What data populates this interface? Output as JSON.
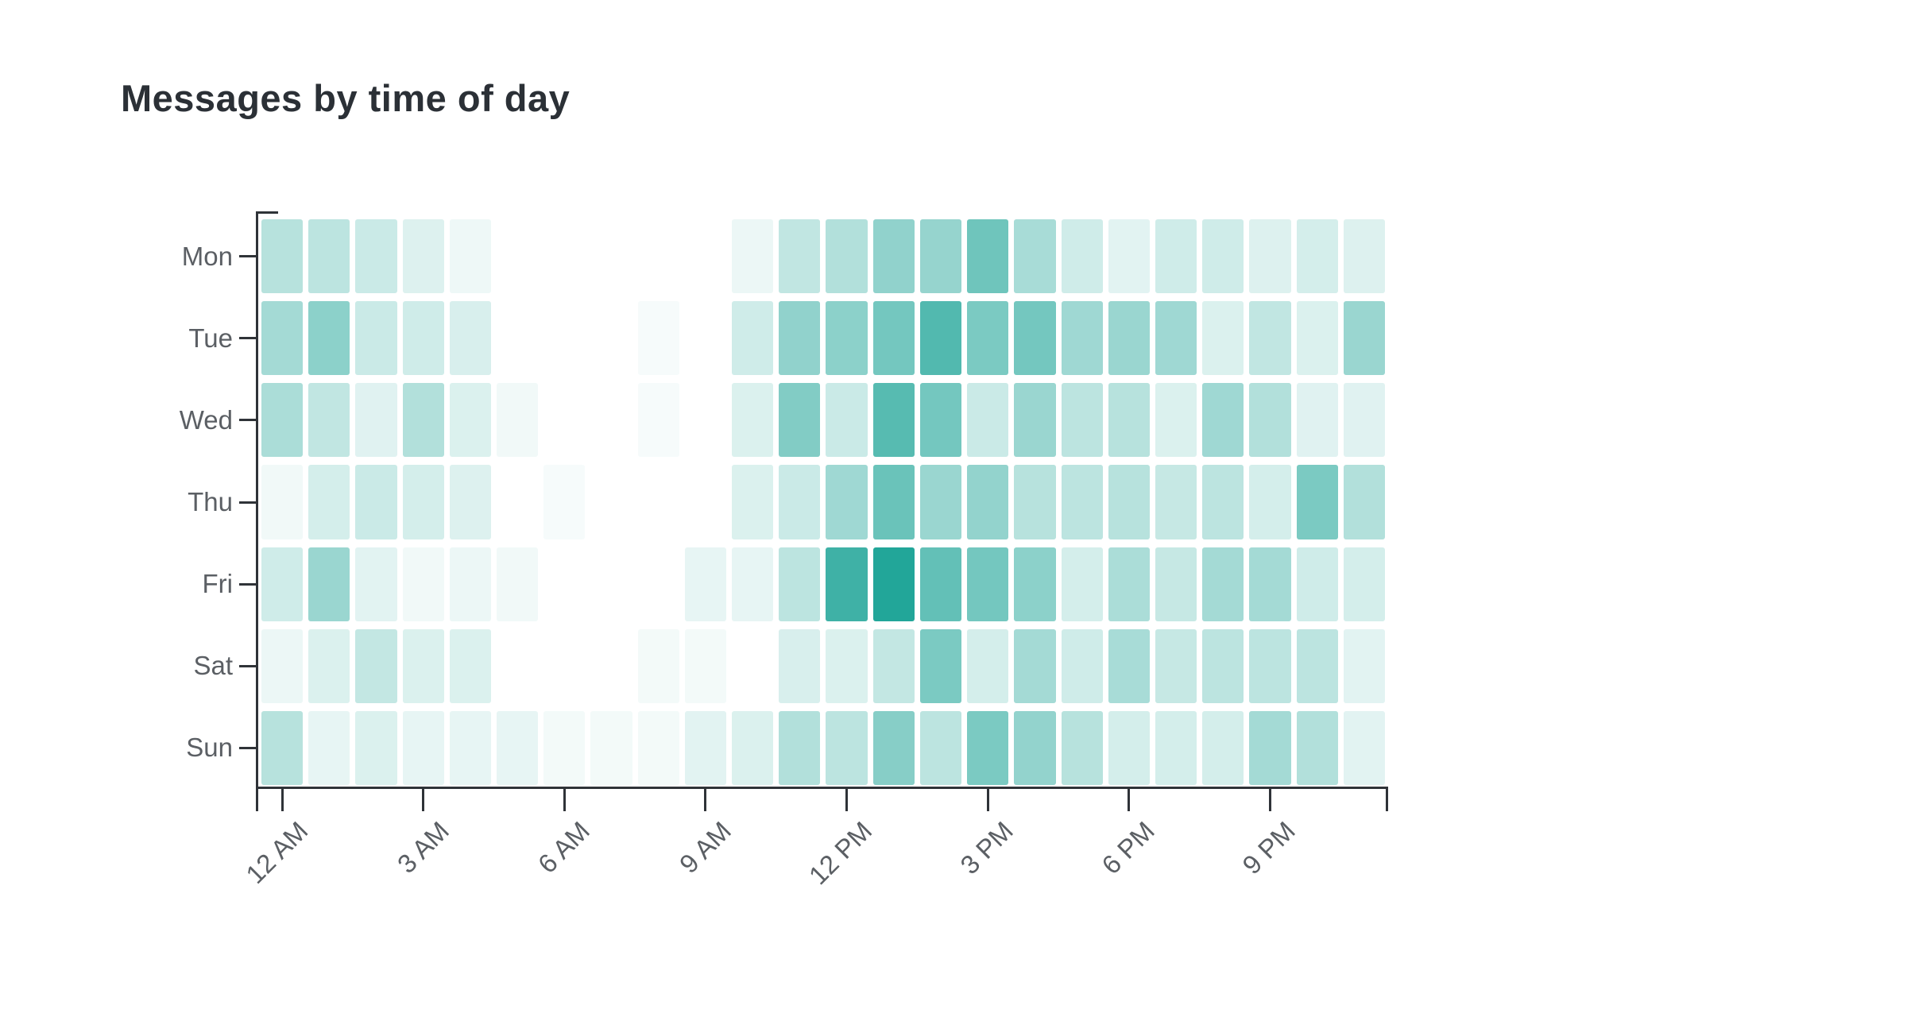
{
  "chart_data": {
    "type": "heatmap",
    "title": "Messages by time of day",
    "rows": [
      "Mon",
      "Tue",
      "Wed",
      "Thu",
      "Fri",
      "Sat",
      "Sun"
    ],
    "columns_hours": 24,
    "x_tick_labels": [
      "12 AM",
      "3 AM",
      "6 AM",
      "9 AM",
      "12 PM",
      "3 PM",
      "6 PM",
      "9 PM"
    ],
    "x_tick_hours": [
      0,
      3,
      6,
      9,
      12,
      15,
      18,
      21
    ],
    "legend": "none",
    "grid": "off",
    "value_scale": "relative message intensity, 0 (white) to 100 (darkest teal)",
    "values": [
      [
        30,
        28,
        22,
        14,
        7,
        0,
        0,
        0,
        0,
        0,
        8,
        26,
        32,
        46,
        44,
        60,
        36,
        20,
        12,
        20,
        20,
        14,
        18,
        14
      ],
      [
        38,
        48,
        22,
        20,
        16,
        0,
        0,
        0,
        4,
        0,
        20,
        46,
        48,
        58,
        72,
        55,
        58,
        40,
        42,
        40,
        15,
        26,
        15,
        42
      ],
      [
        35,
        26,
        13,
        32,
        15,
        6,
        0,
        0,
        4,
        0,
        15,
        52,
        22,
        70,
        58,
        22,
        42,
        28,
        30,
        15,
        40,
        32,
        13,
        13
      ],
      [
        6,
        18,
        22,
        18,
        14,
        0,
        4,
        0,
        0,
        0,
        15,
        22,
        40,
        62,
        42,
        45,
        30,
        28,
        30,
        24,
        28,
        18,
        55,
        32
      ],
      [
        20,
        42,
        12,
        6,
        8,
        6,
        0,
        0,
        0,
        10,
        10,
        28,
        80,
        92,
        65,
        58,
        48,
        18,
        35,
        24,
        38,
        38,
        20,
        18
      ],
      [
        8,
        15,
        25,
        15,
        15,
        0,
        0,
        0,
        5,
        5,
        0,
        16,
        15,
        25,
        55,
        18,
        38,
        20,
        36,
        24,
        28,
        28,
        28,
        12
      ],
      [
        30,
        10,
        15,
        10,
        10,
        10,
        5,
        5,
        5,
        12,
        15,
        32,
        28,
        50,
        28,
        55,
        45,
        30,
        18,
        18,
        18,
        38,
        32,
        12
      ]
    ],
    "colors": {
      "cell_teal_base": "#0f9e90",
      "background": "#ffffff",
      "axis_line": "#2f3338",
      "tick_label": "#5b5f64",
      "title": "#2b3036"
    }
  }
}
